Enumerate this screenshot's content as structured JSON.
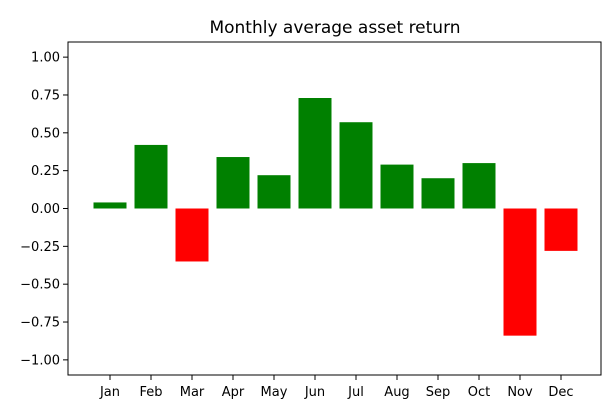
{
  "chart_data": {
    "type": "bar",
    "title": "Monthly average asset return",
    "xlabel": "",
    "ylabel": "",
    "categories": [
      "Jan",
      "Feb",
      "Mar",
      "Apr",
      "May",
      "Jun",
      "Jul",
      "Aug",
      "Sep",
      "Oct",
      "Nov",
      "Dec"
    ],
    "values": [
      0.04,
      0.42,
      -0.35,
      0.34,
      0.22,
      0.73,
      0.57,
      0.29,
      0.2,
      0.3,
      -0.84,
      -0.28
    ],
    "ylim": [
      -1.1,
      1.1
    ],
    "yticks": [
      1.0,
      0.75,
      0.5,
      0.25,
      0.0,
      -0.25,
      -0.5,
      -0.75,
      -1.0
    ],
    "ytick_labels": [
      "1.00",
      "0.75",
      "0.50",
      "0.25",
      "0.00",
      "−0.25",
      "−0.50",
      "−0.75",
      "−1.00"
    ],
    "positive_color": "#008000",
    "negative_color": "#ff0000",
    "grid": false,
    "legend": "none"
  }
}
